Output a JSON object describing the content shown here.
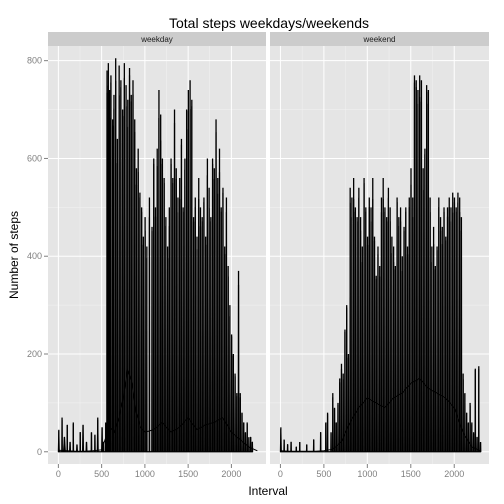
{
  "chart_data": {
    "type": "line",
    "title": "Total steps weekdays/weekends",
    "xlabel": "Interval",
    "ylabel": "Number of steps",
    "xlim": [
      -120,
      2400
    ],
    "ylim": [
      -25,
      830
    ],
    "x_ticks": [
      0,
      500,
      1000,
      1500,
      2000
    ],
    "x_tick_labels": [
      "0",
      "500",
      "1000",
      "1500",
      "2000"
    ],
    "y_ticks": [
      0,
      200,
      400,
      600,
      800
    ],
    "y_tick_labels": [
      "0",
      "200",
      "400",
      "600",
      "800"
    ],
    "grid": true,
    "panels": [
      {
        "label": "weekday",
        "interval_cycle": 2355,
        "bursts": [
          [
            0,
            10,
            45
          ],
          [
            40,
            45,
            70
          ],
          [
            60,
            80,
            30
          ],
          [
            100,
            105,
            55
          ],
          [
            130,
            140,
            20
          ],
          [
            170,
            175,
            60
          ],
          [
            210,
            220,
            15
          ],
          [
            250,
            255,
            40
          ],
          [
            280,
            290,
            55
          ],
          [
            320,
            330,
            20
          ],
          [
            380,
            385,
            40
          ],
          [
            420,
            425,
            35
          ],
          [
            450,
            460,
            70
          ],
          [
            500,
            510,
            50
          ],
          [
            520,
            525,
            20
          ],
          [
            545,
            550,
            60
          ],
          [
            560,
            565,
            780
          ],
          [
            575,
            580,
            795
          ],
          [
            590,
            595,
            740
          ],
          [
            605,
            610,
            770
          ],
          [
            625,
            630,
            680
          ],
          [
            640,
            645,
            730
          ],
          [
            660,
            665,
            805
          ],
          [
            680,
            685,
            640
          ],
          [
            700,
            705,
            790
          ],
          [
            720,
            725,
            760
          ],
          [
            740,
            745,
            700
          ],
          [
            760,
            765,
            795
          ],
          [
            780,
            785,
            750
          ],
          [
            800,
            805,
            720
          ],
          [
            820,
            825,
            785
          ],
          [
            840,
            845,
            730
          ],
          [
            860,
            865,
            760
          ],
          [
            880,
            885,
            680
          ],
          [
            900,
            905,
            580
          ],
          [
            920,
            925,
            620
          ],
          [
            940,
            945,
            530
          ],
          [
            960,
            965,
            500
          ],
          [
            980,
            985,
            440
          ],
          [
            1000,
            1005,
            480
          ],
          [
            1020,
            1025,
            420
          ],
          [
            1050,
            1055,
            520
          ],
          [
            1080,
            1085,
            460
          ],
          [
            1100,
            1105,
            600
          ],
          [
            1120,
            1125,
            500
          ],
          [
            1140,
            1145,
            620
          ],
          [
            1160,
            1165,
            740
          ],
          [
            1180,
            1185,
            690
          ],
          [
            1200,
            1205,
            600
          ],
          [
            1220,
            1225,
            560
          ],
          [
            1240,
            1245,
            480
          ],
          [
            1260,
            1265,
            420
          ],
          [
            1280,
            1285,
            500
          ],
          [
            1300,
            1305,
            600
          ],
          [
            1320,
            1325,
            560
          ],
          [
            1340,
            1345,
            700
          ],
          [
            1360,
            1365,
            580
          ],
          [
            1380,
            1385,
            520
          ],
          [
            1400,
            1405,
            560
          ],
          [
            1420,
            1425,
            640
          ],
          [
            1440,
            1445,
            500
          ],
          [
            1460,
            1465,
            600
          ],
          [
            1480,
            1485,
            700
          ],
          [
            1500,
            1505,
            740
          ],
          [
            1520,
            1525,
            760
          ],
          [
            1540,
            1545,
            720
          ],
          [
            1560,
            1565,
            480
          ],
          [
            1580,
            1585,
            520
          ],
          [
            1600,
            1605,
            440
          ],
          [
            1620,
            1625,
            560
          ],
          [
            1640,
            1645,
            500
          ],
          [
            1660,
            1665,
            480
          ],
          [
            1680,
            1685,
            520
          ],
          [
            1700,
            1705,
            440
          ],
          [
            1720,
            1725,
            600
          ],
          [
            1740,
            1745,
            540
          ],
          [
            1760,
            1765,
            480
          ],
          [
            1780,
            1785,
            600
          ],
          [
            1800,
            1805,
            580
          ],
          [
            1820,
            1825,
            680
          ],
          [
            1840,
            1845,
            560
          ],
          [
            1860,
            1865,
            620
          ],
          [
            1880,
            1885,
            500
          ],
          [
            1900,
            1905,
            540
          ],
          [
            1920,
            1925,
            420
          ],
          [
            1940,
            1945,
            520
          ],
          [
            1960,
            1965,
            380
          ],
          [
            1980,
            1985,
            300
          ],
          [
            2000,
            2005,
            240
          ],
          [
            2020,
            2025,
            200
          ],
          [
            2040,
            2045,
            160
          ],
          [
            2060,
            2065,
            120
          ],
          [
            2080,
            2085,
            370
          ],
          [
            2100,
            2105,
            120
          ],
          [
            2120,
            2125,
            80
          ],
          [
            2140,
            2145,
            60
          ],
          [
            2160,
            2165,
            40
          ],
          [
            2180,
            2185,
            60
          ],
          [
            2200,
            2205,
            30
          ],
          [
            2220,
            2225,
            30
          ],
          [
            2240,
            2245,
            20
          ]
        ],
        "mean_profile_x": [
          0,
          100,
          200,
          300,
          400,
          500,
          550,
          600,
          650,
          700,
          750,
          800,
          850,
          900,
          950,
          1000,
          1100,
          1200,
          1300,
          1400,
          1500,
          1600,
          1700,
          1800,
          1900,
          2000,
          2100,
          2200,
          2300
        ],
        "mean_profile_y": [
          3,
          2,
          1,
          1,
          2,
          4,
          30,
          50,
          40,
          70,
          110,
          170,
          140,
          80,
          50,
          40,
          45,
          60,
          40,
          50,
          70,
          45,
          55,
          60,
          70,
          40,
          25,
          10,
          2
        ]
      },
      {
        "label": "weekend",
        "interval_cycle": 2355,
        "bursts": [
          [
            0,
            10,
            50
          ],
          [
            40,
            45,
            25
          ],
          [
            80,
            85,
            15
          ],
          [
            120,
            125,
            20
          ],
          [
            180,
            185,
            10
          ],
          [
            220,
            225,
            20
          ],
          [
            300,
            305,
            15
          ],
          [
            380,
            385,
            25
          ],
          [
            460,
            465,
            40
          ],
          [
            520,
            525,
            60
          ],
          [
            540,
            545,
            80
          ],
          [
            580,
            585,
            40
          ],
          [
            600,
            605,
            120
          ],
          [
            620,
            625,
            90
          ],
          [
            640,
            645,
            60
          ],
          [
            660,
            665,
            100
          ],
          [
            680,
            685,
            150
          ],
          [
            700,
            705,
            180
          ],
          [
            720,
            725,
            160
          ],
          [
            740,
            745,
            250
          ],
          [
            760,
            765,
            300
          ],
          [
            780,
            785,
            200
          ],
          [
            800,
            805,
            540
          ],
          [
            820,
            825,
            520
          ],
          [
            840,
            845,
            560
          ],
          [
            860,
            865,
            500
          ],
          [
            880,
            885,
            480
          ],
          [
            900,
            905,
            540
          ],
          [
            920,
            925,
            480
          ],
          [
            940,
            945,
            420
          ],
          [
            960,
            965,
            560
          ],
          [
            980,
            985,
            500
          ],
          [
            1000,
            1005,
            440
          ],
          [
            1020,
            1025,
            520
          ],
          [
            1040,
            1045,
            500
          ],
          [
            1060,
            1065,
            560
          ],
          [
            1080,
            1085,
            440
          ],
          [
            1100,
            1105,
            360
          ],
          [
            1120,
            1125,
            420
          ],
          [
            1140,
            1145,
            380
          ],
          [
            1160,
            1165,
            520
          ],
          [
            1180,
            1185,
            560
          ],
          [
            1200,
            1205,
            500
          ],
          [
            1220,
            1225,
            480
          ],
          [
            1240,
            1245,
            540
          ],
          [
            1260,
            1265,
            500
          ],
          [
            1280,
            1285,
            440
          ],
          [
            1300,
            1305,
            420
          ],
          [
            1320,
            1325,
            380
          ],
          [
            1340,
            1345,
            520
          ],
          [
            1360,
            1365,
            480
          ],
          [
            1380,
            1385,
            500
          ],
          [
            1400,
            1405,
            400
          ],
          [
            1420,
            1425,
            460
          ],
          [
            1440,
            1445,
            500
          ],
          [
            1460,
            1465,
            420
          ],
          [
            1480,
            1485,
            520
          ],
          [
            1500,
            1505,
            580
          ],
          [
            1520,
            1525,
            520
          ],
          [
            1540,
            1545,
            770
          ],
          [
            1560,
            1565,
            760
          ],
          [
            1580,
            1585,
            740
          ],
          [
            1600,
            1605,
            770
          ],
          [
            1620,
            1625,
            760
          ],
          [
            1640,
            1645,
            580
          ],
          [
            1660,
            1665,
            620
          ],
          [
            1680,
            1685,
            750
          ],
          [
            1700,
            1705,
            740
          ],
          [
            1720,
            1725,
            520
          ],
          [
            1740,
            1745,
            420
          ],
          [
            1760,
            1765,
            460
          ],
          [
            1780,
            1785,
            380
          ],
          [
            1800,
            1805,
            420
          ],
          [
            1820,
            1825,
            520
          ],
          [
            1840,
            1845,
            480
          ],
          [
            1860,
            1865,
            460
          ],
          [
            1880,
            1885,
            500
          ],
          [
            1900,
            1905,
            440
          ],
          [
            1920,
            1925,
            500
          ],
          [
            1940,
            1945,
            520
          ],
          [
            1960,
            1965,
            500
          ],
          [
            1980,
            1985,
            530
          ],
          [
            2000,
            2005,
            520
          ],
          [
            2020,
            2025,
            500
          ],
          [
            2040,
            2045,
            530
          ],
          [
            2060,
            2065,
            520
          ],
          [
            2080,
            2085,
            480
          ],
          [
            2100,
            2105,
            160
          ],
          [
            2120,
            2125,
            120
          ],
          [
            2140,
            2145,
            80
          ],
          [
            2160,
            2165,
            60
          ],
          [
            2180,
            2185,
            100
          ],
          [
            2200,
            2205,
            60
          ],
          [
            2220,
            2225,
            40
          ],
          [
            2240,
            2245,
            170
          ],
          [
            2260,
            2265,
            30
          ],
          [
            2280,
            2285,
            175
          ],
          [
            2300,
            2305,
            20
          ]
        ],
        "mean_profile_x": [
          0,
          100,
          200,
          300,
          400,
          500,
          600,
          700,
          800,
          900,
          1000,
          1100,
          1200,
          1300,
          1400,
          1500,
          1600,
          1700,
          1800,
          1900,
          2000,
          2100,
          2200,
          2300
        ],
        "mean_profile_y": [
          2,
          1,
          1,
          1,
          1,
          2,
          5,
          20,
          60,
          90,
          110,
          100,
          90,
          110,
          120,
          140,
          150,
          130,
          120,
          110,
          90,
          40,
          10,
          2
        ]
      }
    ]
  }
}
